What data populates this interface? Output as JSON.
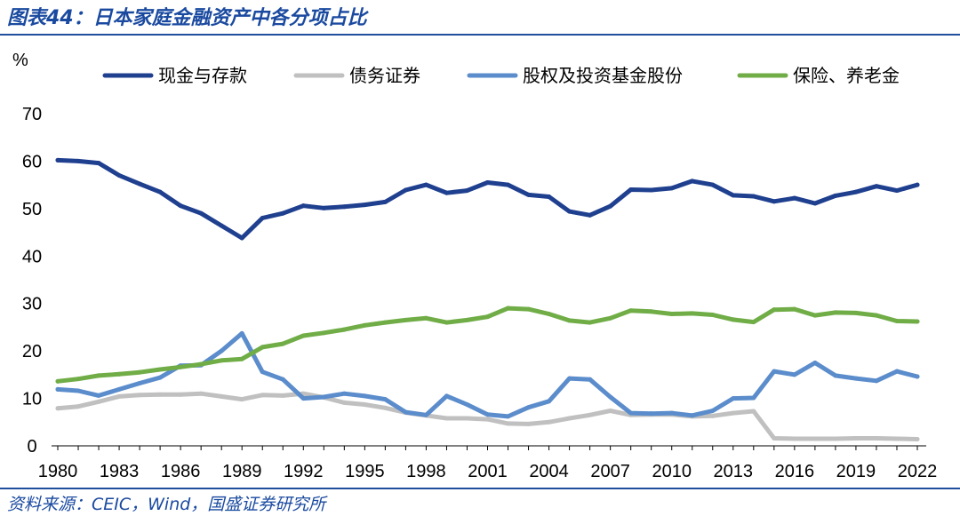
{
  "title": "图表44：日本家庭金融资产中各分项占比",
  "source": "资料来源：CEIC，Wind，国盛证券研究所",
  "chart_data": {
    "type": "line",
    "ylabel": "%",
    "xlabel": "",
    "ylim": [
      0,
      70
    ],
    "yticks": [
      0,
      10,
      20,
      30,
      40,
      50,
      60,
      70
    ],
    "xticks": [
      "1980",
      "1983",
      "1986",
      "1989",
      "1992",
      "1995",
      "1998",
      "2001",
      "2004",
      "2007",
      "2010",
      "2013",
      "2016",
      "2019",
      "2022"
    ],
    "grid": false,
    "legend_position": "top",
    "x": [
      1980,
      1981,
      1982,
      1983,
      1984,
      1985,
      1986,
      1987,
      1988,
      1989,
      1990,
      1991,
      1992,
      1993,
      1994,
      1995,
      1996,
      1997,
      1998,
      1999,
      2000,
      2001,
      2002,
      2003,
      2004,
      2005,
      2006,
      2007,
      2008,
      2009,
      2010,
      2011,
      2012,
      2013,
      2014,
      2015,
      2016,
      2017,
      2018,
      2019,
      2020,
      2021,
      2022
    ],
    "series": [
      {
        "name": "现金与存款",
        "color": "#1f3f8f",
        "values": [
          60.2,
          60.0,
          59.6,
          57.0,
          55.2,
          53.5,
          50.6,
          49.0,
          46.4,
          43.8,
          48.0,
          49.0,
          50.6,
          50.1,
          50.4,
          50.8,
          51.4,
          53.9,
          55.0,
          53.3,
          53.8,
          55.5,
          55.0,
          52.9,
          52.5,
          49.4,
          48.6,
          50.5,
          54.0,
          53.9,
          54.3,
          55.8,
          55.0,
          52.8,
          52.6,
          51.5,
          52.2,
          51.1,
          52.7,
          53.5,
          54.7,
          53.8,
          55.0
        ]
      },
      {
        "name": "债务证券",
        "color": "#c0c0c0",
        "values": [
          7.9,
          8.3,
          9.3,
          10.4,
          10.7,
          10.8,
          10.8,
          11.0,
          10.4,
          9.8,
          10.7,
          10.6,
          11.0,
          10.2,
          9.1,
          8.7,
          8.0,
          7.0,
          6.4,
          5.8,
          5.8,
          5.6,
          4.7,
          4.6,
          5.0,
          5.8,
          6.5,
          7.4,
          6.5,
          6.6,
          6.6,
          6.2,
          6.3,
          6.9,
          7.3,
          1.6,
          1.5,
          1.5,
          1.5,
          1.6,
          1.6,
          1.5,
          1.4
        ]
      },
      {
        "name": "股权及投资基金股份",
        "color": "#5b8ccb",
        "values": [
          11.9,
          11.6,
          10.6,
          11.9,
          13.2,
          14.4,
          16.9,
          17.0,
          20.0,
          23.7,
          15.6,
          14.0,
          10.0,
          10.3,
          11.0,
          10.5,
          9.8,
          7.1,
          6.5,
          10.5,
          8.7,
          6.6,
          6.2,
          8.1,
          9.4,
          14.2,
          14.0,
          10.3,
          6.9,
          6.8,
          6.9,
          6.4,
          7.4,
          10.0,
          10.1,
          15.7,
          15.0,
          17.5,
          14.8,
          14.2,
          13.7,
          15.7,
          14.6
        ]
      },
      {
        "name": "保险、养老金",
        "color": "#70ad47",
        "values": [
          13.6,
          14.1,
          14.8,
          15.1,
          15.5,
          16.1,
          16.6,
          17.2,
          18.0,
          18.3,
          20.8,
          21.5,
          23.2,
          23.8,
          24.5,
          25.4,
          26.0,
          26.5,
          26.9,
          26.0,
          26.5,
          27.2,
          29.0,
          28.8,
          27.8,
          26.4,
          26.0,
          26.9,
          28.5,
          28.3,
          27.8,
          27.9,
          27.6,
          26.6,
          26.1,
          28.7,
          28.8,
          27.5,
          28.1,
          28.0,
          27.5,
          26.3,
          26.2
        ]
      }
    ]
  }
}
